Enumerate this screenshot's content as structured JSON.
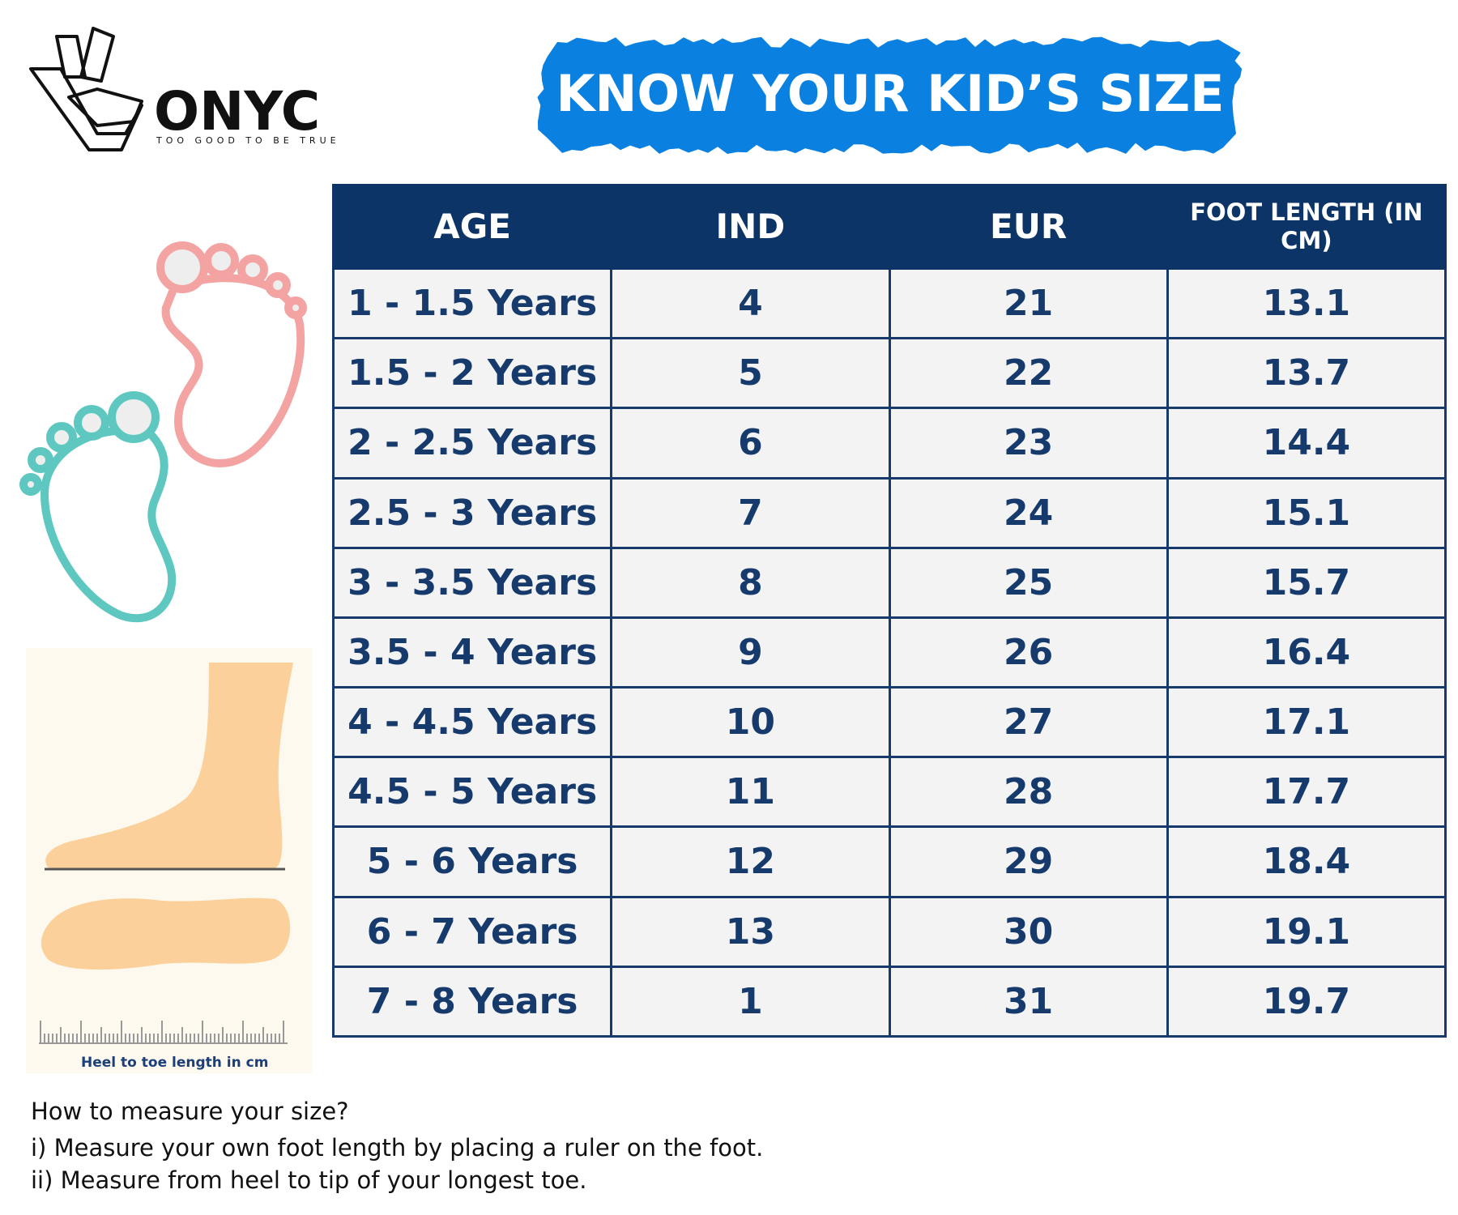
{
  "header": {
    "logo_text": "ONYC",
    "tagline": "TOO GOOD TO BE TRUE",
    "title": "KNOW YOUR KID’S SIZE"
  },
  "table": {
    "columns": [
      "AGE",
      "IND",
      "EUR",
      "FOOT LENGTH (IN CM)"
    ],
    "rows": [
      [
        "1 - 1.5 Years",
        "4",
        "21",
        "13.1"
      ],
      [
        "1.5 - 2 Years",
        "5",
        "22",
        "13.7"
      ],
      [
        "2 - 2.5 Years",
        "6",
        "23",
        "14.4"
      ],
      [
        "2.5 - 3 Years",
        "7",
        "24",
        "15.1"
      ],
      [
        "3 - 3.5 Years",
        "8",
        "25",
        "15.7"
      ],
      [
        "3.5 - 4 Years",
        "9",
        "26",
        "16.4"
      ],
      [
        "4 - 4.5 Years",
        "10",
        "27",
        "17.1"
      ],
      [
        "4.5 - 5 Years",
        "11",
        "28",
        "17.7"
      ],
      [
        "5 - 6 Years",
        "12",
        "29",
        "18.4"
      ],
      [
        "6 - 7 Years",
        "13",
        "30",
        "19.1"
      ],
      [
        "7 - 8 Years",
        "1",
        "31",
        "19.7"
      ]
    ]
  },
  "illustration": {
    "caption": "Heel to toe length in cm"
  },
  "instructions": {
    "title": "How to measure your size?",
    "steps": [
      "i) Measure your own foot length by placing a ruler on the foot.",
      "ii) Measure from heel to tip of your longest toe."
    ]
  }
}
